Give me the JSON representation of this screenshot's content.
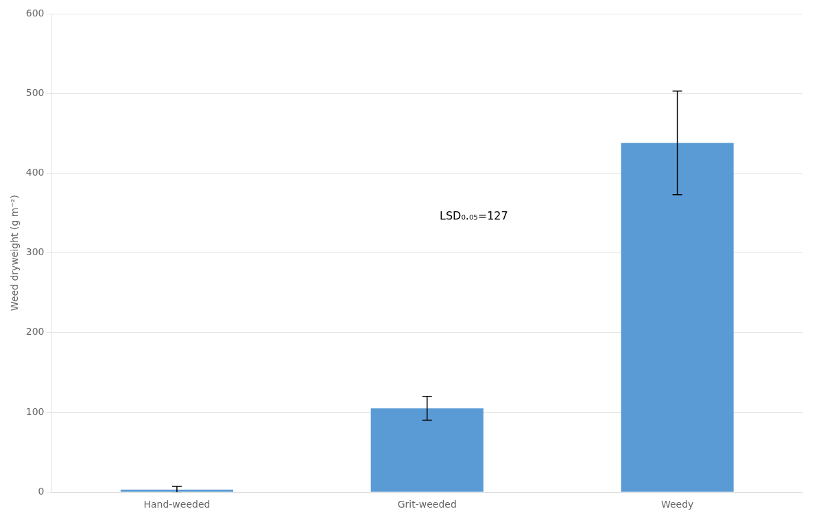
{
  "chart_data": {
    "type": "bar",
    "categories": [
      "Hand-weeded",
      "Grit-weeded",
      "Weedy"
    ],
    "values": [
      3,
      105,
      438
    ],
    "errors": [
      4,
      15,
      65
    ],
    "color": "#5B9BD5",
    "ylabel": "Weed dryweight (g m⁻²)",
    "ylim": [
      0,
      600
    ],
    "yticks": [
      0,
      100,
      200,
      300,
      400,
      500,
      600
    ],
    "annotations": [
      {
        "text": "LSD₀.₀₅=127"
      }
    ],
    "grid": true
  }
}
